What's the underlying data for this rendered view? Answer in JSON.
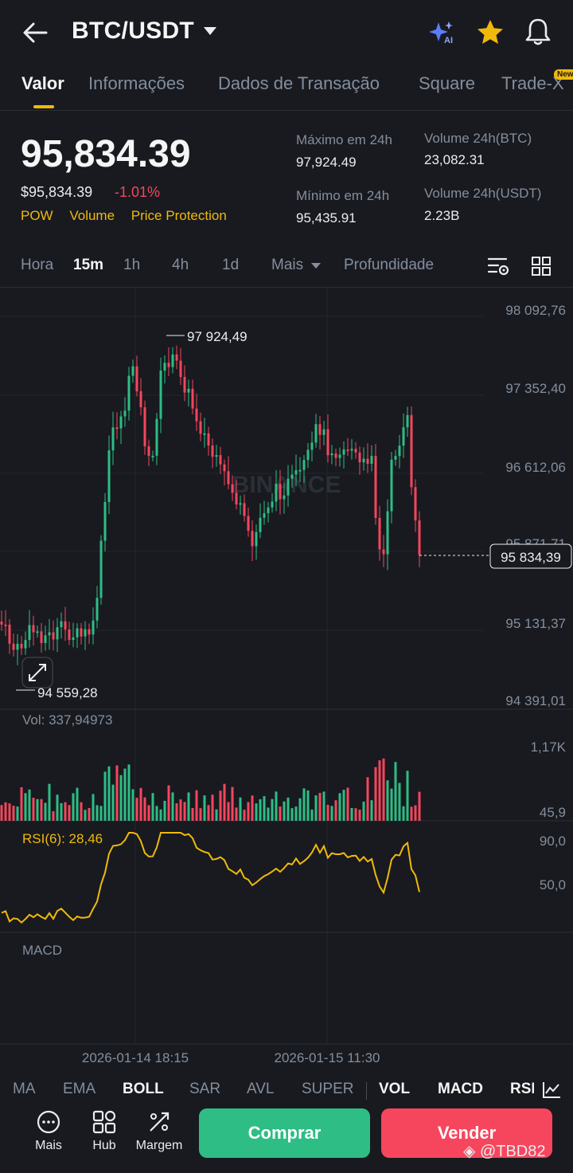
{
  "header": {
    "pair": "BTC/USDT",
    "icons": [
      "back-arrow-icon",
      "ai-sparkle-icon",
      "star-icon",
      "bell-icon"
    ],
    "ai_badge": "AI"
  },
  "tabs": [
    {
      "label": "Valor",
      "active": true
    },
    {
      "label": "Informações"
    },
    {
      "label": "Dados de Transação"
    },
    {
      "label": "Square"
    },
    {
      "label": "Trade-X",
      "badge": "New"
    }
  ],
  "ticker": {
    "last_price": "95,834.39",
    "fiat_price": "$95,834.39",
    "change": "-1.01%",
    "tags": [
      "POW",
      "Volume",
      "Price Protection"
    ],
    "high_label": "Máximo em 24h",
    "high": "97,924.49",
    "low_label": "Mínimo em 24h",
    "low": "95,435.91",
    "vol_btc_label": "Volume 24h(BTC)",
    "vol_btc": "23,082.31",
    "vol_usdt_label": "Volume 24h(USDT)",
    "vol_usdt": "2.23B"
  },
  "intervals": {
    "items": [
      "Hora",
      "15m",
      "1h",
      "4h",
      "1d",
      "Mais",
      "Profundidade"
    ],
    "active": "15m"
  },
  "chart": {
    "watermark": "BINANCE",
    "price_axis": [
      "98 092,76",
      "97 352,40",
      "96 612,06",
      "95 871,71",
      "95 131,37",
      "94 391,01"
    ],
    "current_price_label": "95 834,39",
    "high_marker": "97 924,49",
    "low_marker": "94 559,28",
    "vol_label": "Vol: 337,94973",
    "vol_axis": [
      "1,17K",
      "45,9"
    ],
    "rsi_label": "RSI(6): 28,46",
    "rsi_axis": [
      "90,0",
      "50,0"
    ],
    "macd_label": "MACD",
    "dates": [
      "2026-01-14 18:15",
      "2026-01-15 11:30"
    ],
    "colors": {
      "up": "#2EBD85",
      "down": "#F6465D",
      "rsi": "#F0B90B",
      "bg": "#181A20"
    }
  },
  "chart_data": {
    "type": "candlestick",
    "interval": "15m",
    "y_range": [
      94391.01,
      98092.76
    ],
    "high": 97924.49,
    "low": 94559.28,
    "last": 95834.39,
    "x_labels": [
      "2026-01-14 18:15",
      "2026-01-15 11:30"
    ]
  },
  "indicators": [
    "MA",
    "EMA",
    "BOLL",
    "SAR",
    "AVL",
    "SUPER",
    "VOL",
    "MACD",
    "RSI"
  ],
  "indicators_on": [
    "BOLL",
    "VOL",
    "MACD",
    "RSI"
  ],
  "actions": {
    "more": "Mais",
    "hub": "Hub",
    "margin": "Margem",
    "buy": "Comprar",
    "sell": "Vender"
  },
  "watermark_user": "@TBD82"
}
